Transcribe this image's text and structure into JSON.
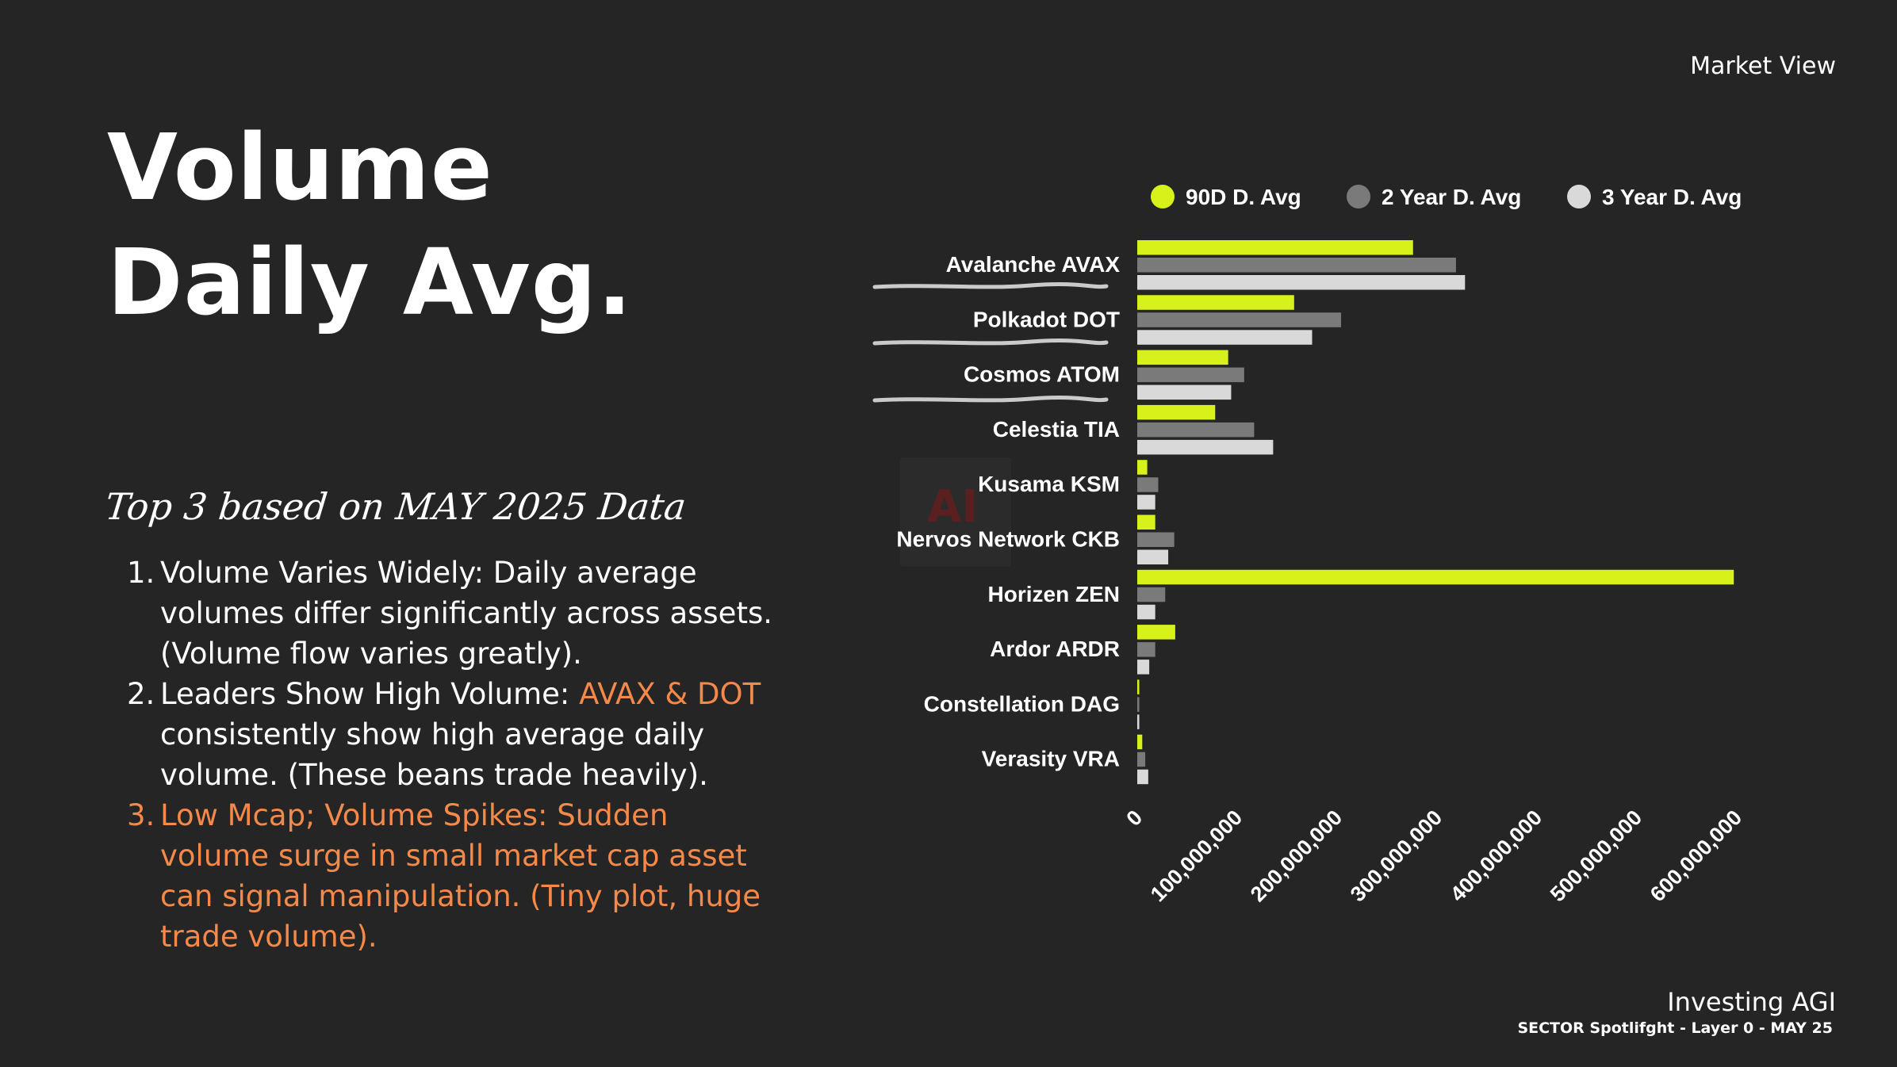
{
  "header": {
    "market_view": "Market View"
  },
  "title": {
    "line1": "Volume",
    "line2": "Daily Avg."
  },
  "subtitle": "Top 3 based on MAY 2025 Data",
  "points": [
    {
      "num": "1.",
      "text": "Volume Varies Widely: Daily average volumes differ significantly across assets. (Volume flow varies greatly)."
    },
    {
      "num": "2.",
      "text_before": "Leaders Show High Volume: ",
      "highlight": "AVAX & DOT",
      "text_after": " consistently show high average daily volume. (These beans trade heavily)."
    },
    {
      "num": "3.",
      "text": "Low Mcap; Volume Spikes: Sudden volume surge in small market cap asset can signal manipulation. (Tiny plot, huge trade volume)."
    }
  ],
  "footer": {
    "brand": "Investing AGI",
    "sub": "SECTOR Spotlifght - Layer 0 - MAY 25"
  },
  "watermark": "AI",
  "colors": {
    "accent": "#f4894a",
    "series_90d": "#d7f11b",
    "series_2y": "#7a7a7a",
    "series_3y": "#d9d9d9",
    "background": "#252525"
  },
  "chart_data": {
    "type": "bar",
    "orientation": "horizontal",
    "categories": [
      "Avalanche AVAX",
      "Polkadot DOT",
      "Cosmos ATOM",
      "Celestia TIA",
      "Kusama KSM",
      "Nervos Network CKB",
      "Horizen ZEN",
      "Ardor ARDR",
      "Constellation DAG",
      "Verasity VRA"
    ],
    "series": [
      {
        "name": "90D D. Avg",
        "color": "#d7f11b",
        "values": [
          276000000,
          157000000,
          91000000,
          78000000,
          10000000,
          18000000,
          597000000,
          38000000,
          2000000,
          5000000
        ]
      },
      {
        "name": "2 Year D. Avg",
        "color": "#7a7a7a",
        "values": [
          319000000,
          204000000,
          107000000,
          117000000,
          21000000,
          37000000,
          28000000,
          18000000,
          2000000,
          8000000
        ]
      },
      {
        "name": "3 Year D. Avg",
        "color": "#d9d9d9",
        "values": [
          328000000,
          175000000,
          94000000,
          136000000,
          18000000,
          31000000,
          18000000,
          12000000,
          2000000,
          11000000
        ]
      }
    ],
    "xlim": [
      0,
      600000000
    ],
    "xticks": [
      0,
      100000000,
      200000000,
      300000000,
      400000000,
      500000000,
      600000000
    ],
    "xtick_labels": [
      "0",
      "100,000,000",
      "200,000,000",
      "300,000,000",
      "400,000,000",
      "500,000,000",
      "600,000,000"
    ],
    "legend_position": "top",
    "grid": false
  }
}
